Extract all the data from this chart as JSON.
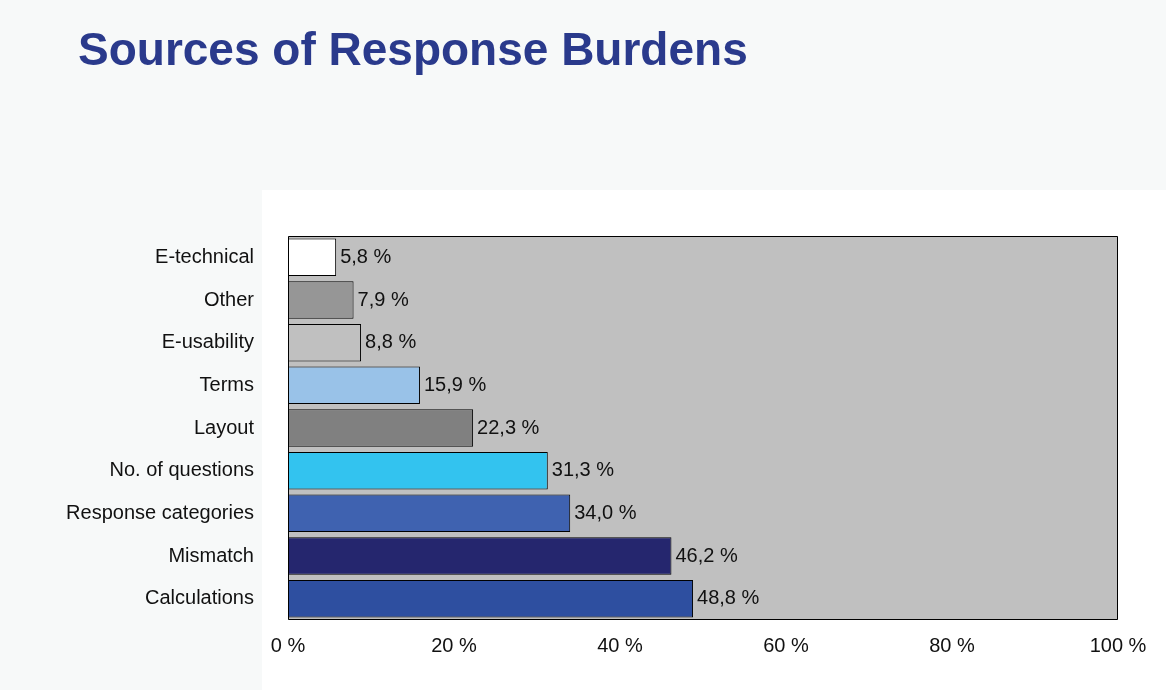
{
  "chart_data": {
    "type": "bar",
    "orientation": "horizontal",
    "title": "Sources of Response Burdens",
    "categories": [
      "E-technical",
      "Other",
      "E-usability",
      "Terms",
      "Layout",
      "No. of questions",
      "Response categories",
      "Mismatch",
      "Calculations"
    ],
    "values": [
      5.8,
      7.9,
      8.8,
      15.9,
      22.3,
      31.3,
      34.0,
      46.2,
      48.8
    ],
    "colors": [
      "#ffffff",
      "#969696",
      "#c0c0c0",
      "#99c2e8",
      "#808080",
      "#33c3ef",
      "#3f62b0",
      "#25266e",
      "#2e4fa0"
    ],
    "value_labels": [
      "5,8 %",
      "7,9 %",
      "8,8 %",
      "15,9 %",
      "22,3 %",
      "31,3 %",
      "34,0 %",
      "46,2 %",
      "48,8 %"
    ],
    "xlim": [
      0,
      100
    ],
    "xticks": [
      {
        "value": 0,
        "label": "0 %"
      },
      {
        "value": 20,
        "label": "20 %"
      },
      {
        "value": 40,
        "label": "40 %"
      },
      {
        "value": 60,
        "label": "60 %"
      },
      {
        "value": 80,
        "label": "80 %"
      },
      {
        "value": 100,
        "label": "100 %"
      }
    ],
    "grid": false,
    "legend": false
  }
}
